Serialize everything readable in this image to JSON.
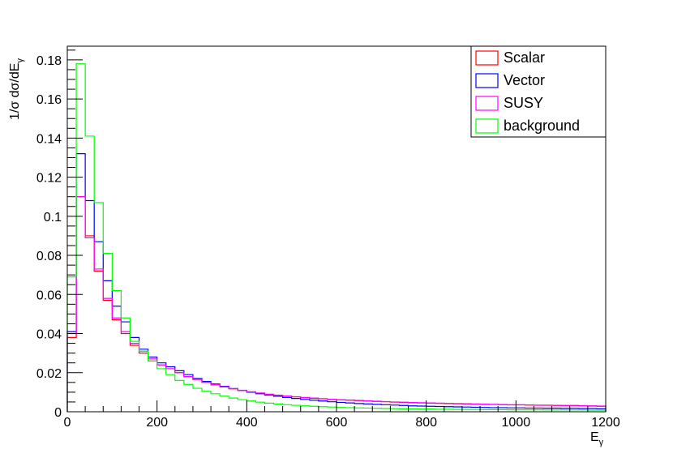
{
  "chart_data": {
    "type": "line",
    "title": "",
    "xlabel": "E",
    "xlabel_sub": "γ",
    "ylabel": "1/σ dσ/dE",
    "ylabel_sub": "γ",
    "xlim": [
      0,
      1200
    ],
    "ylim": [
      0,
      0.187
    ],
    "x_ticks": [
      0,
      200,
      400,
      600,
      800,
      1000,
      1200
    ],
    "x_tick_labels": [
      "0",
      "200",
      "400",
      "600",
      "800",
      "1000",
      "1200"
    ],
    "y_ticks": [
      0,
      0.02,
      0.04,
      0.06,
      0.08,
      0.1,
      0.12,
      0.14,
      0.16,
      0.18
    ],
    "y_tick_labels": [
      "0",
      "0.02",
      "0.04",
      "0.06",
      "0.08",
      "0.1",
      "0.12",
      "0.14",
      "0.16",
      "0.18"
    ],
    "grid": false,
    "legend_position": "top-right",
    "bin_edges_start": 0,
    "bin_width": 20,
    "n_bins": 60,
    "series": [
      {
        "name": "Scalar",
        "color": "#ff0000",
        "values": [
          0.038,
          0.11,
          0.09,
          0.072,
          0.057,
          0.047,
          0.04,
          0.034,
          0.03,
          0.026,
          0.024,
          0.022,
          0.02,
          0.018,
          0.0165,
          0.015,
          0.0138,
          0.0127,
          0.0117,
          0.0109,
          0.0101,
          0.0095,
          0.0089,
          0.0084,
          0.008,
          0.0076,
          0.0072,
          0.0069,
          0.0066,
          0.0063,
          0.0061,
          0.0059,
          0.0057,
          0.0055,
          0.0053,
          0.0051,
          0.0049,
          0.0048,
          0.0046,
          0.0045,
          0.0044,
          0.0043,
          0.0042,
          0.0041,
          0.004,
          0.0039,
          0.0038,
          0.0037,
          0.0036,
          0.0035,
          0.0035,
          0.0034,
          0.0033,
          0.0033,
          0.0032,
          0.0031,
          0.0031,
          0.003,
          0.0029,
          0.0028
        ]
      },
      {
        "name": "Vector",
        "color": "#0000ff",
        "values": [
          0.041,
          0.132,
          0.108,
          0.087,
          0.067,
          0.054,
          0.046,
          0.038,
          0.032,
          0.028,
          0.025,
          0.023,
          0.021,
          0.019,
          0.017,
          0.0155,
          0.0142,
          0.013,
          0.0119,
          0.0109,
          0.01,
          0.0092,
          0.0085,
          0.0079,
          0.0073,
          0.0068,
          0.0063,
          0.0059,
          0.0055,
          0.0051,
          0.0048,
          0.0045,
          0.0042,
          0.004,
          0.0038,
          0.0036,
          0.0034,
          0.0032,
          0.003,
          0.0029,
          0.0028,
          0.0027,
          0.0026,
          0.0025,
          0.0024,
          0.0023,
          0.0022,
          0.0021,
          0.0021,
          0.002,
          0.002,
          0.0019,
          0.0019,
          0.0018,
          0.0018,
          0.0017,
          0.0017,
          0.0016,
          0.0016,
          0.0015
        ]
      },
      {
        "name": "SUSY",
        "color": "#ff00ff",
        "values": [
          0.04,
          0.11,
          0.089,
          0.073,
          0.058,
          0.048,
          0.041,
          0.035,
          0.031,
          0.027,
          0.024,
          0.022,
          0.02,
          0.018,
          0.0166,
          0.0151,
          0.0139,
          0.0128,
          0.0118,
          0.011,
          0.0102,
          0.0096,
          0.009,
          0.0085,
          0.0081,
          0.0077,
          0.0073,
          0.007,
          0.0067,
          0.0064,
          0.0062,
          0.006,
          0.0058,
          0.0056,
          0.0054,
          0.0052,
          0.005,
          0.0049,
          0.0047,
          0.0046,
          0.0045,
          0.0044,
          0.0043,
          0.0042,
          0.0041,
          0.004,
          0.0039,
          0.0038,
          0.0037,
          0.0036,
          0.0036,
          0.0035,
          0.0034,
          0.0034,
          0.0033,
          0.0032,
          0.0032,
          0.0031,
          0.003,
          0.0029
        ]
      },
      {
        "name": "background",
        "color": "#00ff00",
        "values": [
          0.069,
          0.178,
          0.141,
          0.107,
          0.081,
          0.062,
          0.048,
          0.036,
          0.031,
          0.026,
          0.022,
          0.019,
          0.016,
          0.014,
          0.012,
          0.0105,
          0.0092,
          0.008,
          0.007,
          0.0062,
          0.0055,
          0.0049,
          0.0044,
          0.004,
          0.0036,
          0.0033,
          0.003,
          0.0028,
          0.0026,
          0.0024,
          0.0022,
          0.0021,
          0.002,
          0.0019,
          0.0018,
          0.0017,
          0.0016,
          0.0015,
          0.0015,
          0.0014,
          0.0014,
          0.0013,
          0.0013,
          0.0012,
          0.0012,
          0.0012,
          0.0011,
          0.0011,
          0.0011,
          0.001,
          0.001,
          0.001,
          0.001,
          0.0009,
          0.0009,
          0.0009,
          0.0009,
          0.0009,
          0.0008,
          0.0008
        ]
      }
    ]
  }
}
